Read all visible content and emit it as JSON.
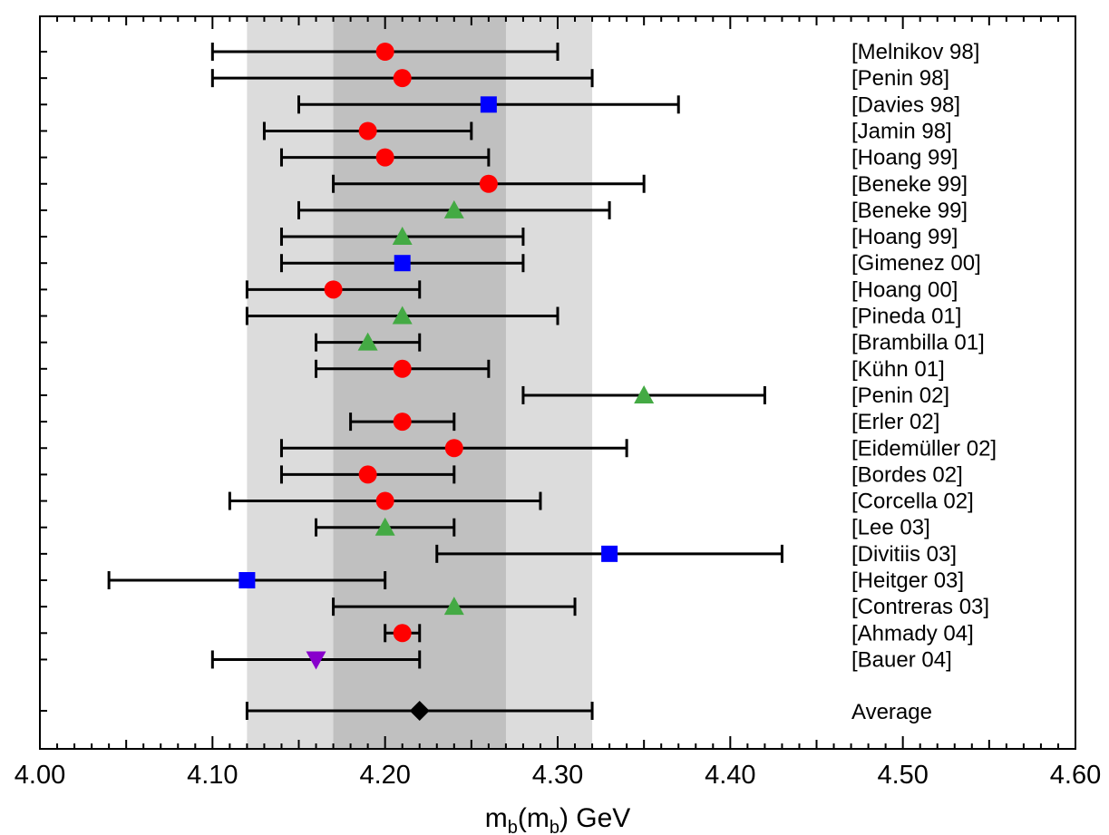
{
  "chart_data": {
    "type": "scatter",
    "title": "",
    "xlabel": "m_b(m_b) GeV",
    "xlim": [
      4.0,
      4.6
    ],
    "x_ticks": [
      "4.00",
      "4.10",
      "4.20",
      "4.30",
      "4.40",
      "4.50",
      "4.60"
    ],
    "grid": false,
    "bands": [
      {
        "name": "outer",
        "from": 4.12,
        "to": 4.32,
        "color": "#dcdcdc"
      },
      {
        "name": "inner",
        "from": 4.17,
        "to": 4.27,
        "color": "#c0c0c0"
      }
    ],
    "marker_colors": {
      "circle": "#ff0000",
      "square": "#0000ff",
      "triangle": "#44aa44",
      "triangle-down": "#8800cc",
      "diamond": "#000000"
    },
    "points": [
      {
        "label": "[Melnikov 98]",
        "value": 4.2,
        "low": 4.1,
        "high": 4.3,
        "marker": "circle"
      },
      {
        "label": "[Penin 98]",
        "value": 4.21,
        "low": 4.1,
        "high": 4.32,
        "marker": "circle"
      },
      {
        "label": "[Davies 98]",
        "value": 4.26,
        "low": 4.15,
        "high": 4.37,
        "marker": "square"
      },
      {
        "label": "[Jamin 98]",
        "value": 4.19,
        "low": 4.13,
        "high": 4.25,
        "marker": "circle"
      },
      {
        "label": "[Hoang 99]",
        "value": 4.2,
        "low": 4.14,
        "high": 4.26,
        "marker": "circle"
      },
      {
        "label": "[Beneke 99]",
        "value": 4.26,
        "low": 4.17,
        "high": 4.35,
        "marker": "circle"
      },
      {
        "label": "[Beneke 99]",
        "value": 4.24,
        "low": 4.15,
        "high": 4.33,
        "marker": "triangle"
      },
      {
        "label": "[Hoang 99]",
        "value": 4.21,
        "low": 4.14,
        "high": 4.28,
        "marker": "triangle"
      },
      {
        "label": "[Gimenez 00]",
        "value": 4.21,
        "low": 4.14,
        "high": 4.28,
        "marker": "square"
      },
      {
        "label": "[Hoang 00]",
        "value": 4.17,
        "low": 4.12,
        "high": 4.22,
        "marker": "circle"
      },
      {
        "label": "[Pineda 01]",
        "value": 4.21,
        "low": 4.12,
        "high": 4.3,
        "marker": "triangle"
      },
      {
        "label": "[Brambilla 01]",
        "value": 4.19,
        "low": 4.16,
        "high": 4.22,
        "marker": "triangle"
      },
      {
        "label": "[Kühn 01]",
        "value": 4.21,
        "low": 4.16,
        "high": 4.26,
        "marker": "circle"
      },
      {
        "label": "[Penin 02]",
        "value": 4.35,
        "low": 4.28,
        "high": 4.42,
        "marker": "triangle"
      },
      {
        "label": "[Erler 02]",
        "value": 4.21,
        "low": 4.18,
        "high": 4.24,
        "marker": "circle"
      },
      {
        "label": "[Eidemüller 02]",
        "value": 4.24,
        "low": 4.14,
        "high": 4.34,
        "marker": "circle"
      },
      {
        "label": "[Bordes 02]",
        "value": 4.19,
        "low": 4.14,
        "high": 4.24,
        "marker": "circle"
      },
      {
        "label": "[Corcella 02]",
        "value": 4.2,
        "low": 4.11,
        "high": 4.29,
        "marker": "circle"
      },
      {
        "label": "[Lee 03]",
        "value": 4.2,
        "low": 4.16,
        "high": 4.24,
        "marker": "triangle"
      },
      {
        "label": "[Divitiis 03]",
        "value": 4.33,
        "low": 4.23,
        "high": 4.43,
        "marker": "square"
      },
      {
        "label": "[Heitger 03]",
        "value": 4.12,
        "low": 4.04,
        "high": 4.2,
        "marker": "square"
      },
      {
        "label": "[Contreras 03]",
        "value": 4.24,
        "low": 4.17,
        "high": 4.31,
        "marker": "triangle"
      },
      {
        "label": "[Ahmady 04]",
        "value": 4.21,
        "low": 4.2,
        "high": 4.22,
        "marker": "circle"
      },
      {
        "label": "[Bauer 04]",
        "value": 4.16,
        "low": 4.1,
        "high": 4.22,
        "marker": "triangle-down"
      }
    ],
    "average": {
      "label": "Average",
      "value": 4.22,
      "low": 4.12,
      "high": 4.32,
      "marker": "diamond"
    }
  }
}
